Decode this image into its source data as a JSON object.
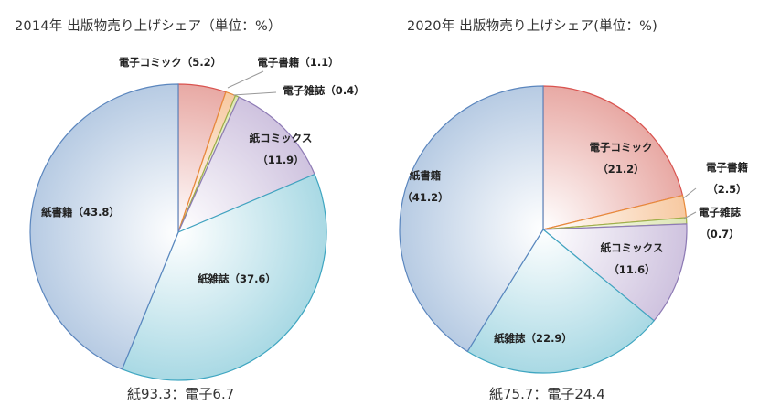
{
  "chart_data": [
    {
      "type": "pie",
      "title": "2014年 出版物売り上げシェア（単位：%）",
      "footer": "紙93.3：電子6.7",
      "slices": [
        {
          "name": "電子コミック",
          "value": 5.2,
          "label": "電子コミック（5.2）",
          "color": "#E8A9A4"
        },
        {
          "name": "電子書籍",
          "value": 1.1,
          "label": "電子書籍（1.1）",
          "color": "#F7C9A1"
        },
        {
          "name": "電子雑誌",
          "value": 0.4,
          "label": "電子雑誌（0.4）",
          "color": "#DDE6B5"
        },
        {
          "name": "紙コミックス",
          "value": 11.9,
          "label": [
            "紙コミックス",
            "（11.9）"
          ],
          "color": "#CFC3DF"
        },
        {
          "name": "紙雑誌",
          "value": 37.6,
          "label": "紙雑誌（37.6）",
          "color": "#A9D9E4"
        },
        {
          "name": "紙書籍",
          "value": 43.8,
          "label": "紙書籍（43.8）",
          "color": "#B7CBE3"
        }
      ]
    },
    {
      "type": "pie",
      "title": "2020年 出版物売り上げシェア(単位：%)",
      "footer": "紙75.7：電子24.4",
      "slices": [
        {
          "name": "電子コミック",
          "value": 21.2,
          "label": [
            "電子コミック",
            "（21.2）"
          ],
          "color": "#E8A9A4"
        },
        {
          "name": "電子書籍",
          "value": 2.5,
          "label": [
            "電子書籍",
            "（2.5）"
          ],
          "color": "#F7C9A1"
        },
        {
          "name": "電子雑誌",
          "value": 0.7,
          "label": [
            "電子雑誌",
            "（0.7）"
          ],
          "color": "#DDE6B5"
        },
        {
          "name": "紙コミックス",
          "value": 11.6,
          "label": [
            "紙コミックス",
            "（11.6）"
          ],
          "color": "#CFC3DF"
        },
        {
          "name": "紙雑誌",
          "value": 22.9,
          "label": "紙雑誌（22.9）",
          "color": "#A9D9E4"
        },
        {
          "name": "紙書籍",
          "value": 41.2,
          "label": [
            "紙書籍",
            "（41.2）"
          ],
          "color": "#B7CBE3"
        }
      ]
    }
  ]
}
